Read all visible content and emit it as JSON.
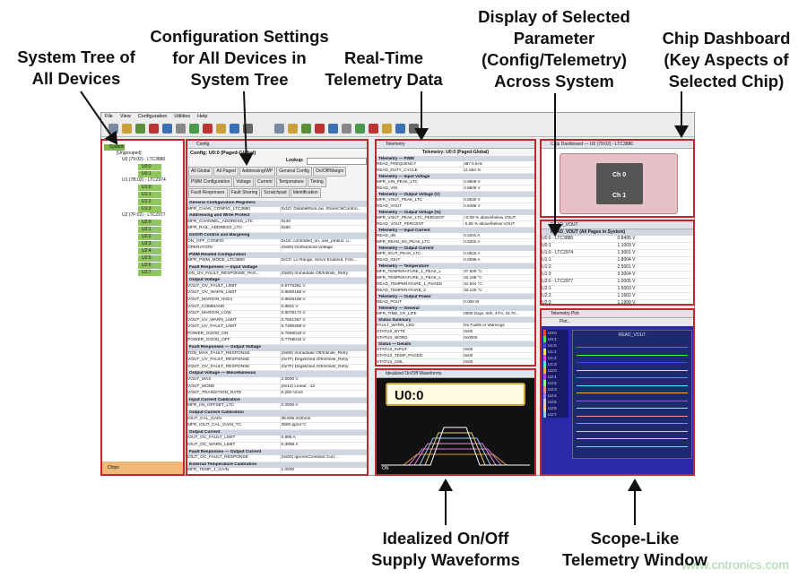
{
  "callouts": {
    "tree": [
      "System Tree of",
      "All Devices"
    ],
    "config": [
      "Configuration Settings",
      "for All Devices in",
      "System Tree"
    ],
    "telemetry": [
      "Real-Time",
      "Telemetry Data"
    ],
    "display": [
      "Display of Selected",
      "Parameter",
      "(Config/Telemetry)",
      "Across System"
    ],
    "dashboard": [
      "Chip Dashboard",
      "(Key Aspects of",
      "Selected Chip)"
    ],
    "waveforms": [
      "Idealized On/Off",
      "Supply Waveforms"
    ],
    "scope": [
      "Scope-Like",
      "Telemetry Window"
    ]
  },
  "watermark": "www.cntronics.com",
  "menu": [
    "File",
    "View",
    "Configuration",
    "Utilities",
    "Help"
  ],
  "tree": {
    "root": "System",
    "group": "[Ungrouped]",
    "chips": [
      {
        "name": "U0 (79:02) - LTC3880",
        "pages": [
          "U0:0",
          "U0:1"
        ]
      },
      {
        "name": "U1 (7B:02) - LTC2974",
        "pages": [
          "U1:0",
          "U1:1",
          "U1:2",
          "U1:3"
        ]
      },
      {
        "name": "U2 (7F:02) - LTC2977",
        "pages": [
          "U2:0",
          "U2:1",
          "U2:2",
          "U2:3",
          "U2:4",
          "U2:5",
          "U2:6",
          "U2:7"
        ]
      }
    ],
    "footer": "Chips"
  },
  "config": {
    "title": "Config",
    "heading": "Config: U0:0 (Paged-Global)",
    "lookup": "Lookup:",
    "tabs": [
      "All Global",
      "All Paged",
      "Addressing/WP",
      "General Config",
      "On/Off/Margin",
      "PWM Configuration",
      "Voltage",
      "Current",
      "Temperature",
      "Timing",
      "Fault Responses",
      "Fault Sharing",
      "Scratchpad",
      "Identification"
    ],
    "sections": [
      {
        "title": "General Configuration Registers",
        "rows": [
          [
            "MFR_CHAN_CONFIG_LTC3880",
            "0x1D: DisableRunLow, ShareClkControl..."
          ]
        ]
      },
      {
        "title": "Addressing and Write Protect",
        "rows": [
          [
            "MFR_CHANNEL_ADDRESS_LTC",
            "0x40"
          ],
          [
            "MFR_RAIL_ADDRESS_LTC",
            "0x80"
          ]
        ]
      },
      {
        "title": "On/Off Control and Margining",
        "rows": [
          [
            "ON_OFF_CONFIG",
            "0x1E: controlled_on, use_pmbus, u..."
          ],
          [
            "OPERATION",
            "(0x80) On/Nominal Voltage"
          ]
        ]
      },
      {
        "title": "PWM Related Configuration",
        "rows": [
          [
            "MFR_PWM_MODE_LTC3880",
            "0xC0: Lo Range, Servo Enabled, Forc..."
          ]
        ]
      },
      {
        "title": "Fault Responses — Input Voltage",
        "rows": [
          [
            "VIN_OV_FAULT_RESPONSE_PAG...",
            "(0x80) Immediate Off/Infinite_Retry"
          ]
        ]
      },
      {
        "title": "Output Voltage",
        "rows": [
          [
            "VOUT_OV_FAULT_LIMIT",
            "0.8775391 V"
          ],
          [
            "VOUT_OV_WARN_LIMIT",
            "0.8690186 V"
          ],
          [
            "VOUT_MARGIN_HIGH",
            "0.8825195 V"
          ],
          [
            "VOUT_COMMAND",
            "0.8501 V"
          ],
          [
            "VOUT_MARGIN_LOW",
            "0.8076172 V"
          ],
          [
            "VOUT_UV_WARN_LIMIT",
            "0.7651367 V"
          ],
          [
            "VOUT_UV_FAULT_LIMIT",
            "0.7480469 V"
          ],
          [
            "POWER_GOOD_ON",
            "0.7666016 V"
          ],
          [
            "POWER_GOOD_OFF",
            "0.7758016 V"
          ]
        ]
      },
      {
        "title": "Fault Responses — Output Voltage",
        "rows": [
          [
            "TON_MAX_FAULT_RESPONSE",
            "(0x80) Immediate Off/Infinite_Retry"
          ],
          [
            "VOUT_UV_FAULT_RESPONSE",
            "(0x7F) Deglitched Off/Infinite_Retry"
          ],
          [
            "VOUT_OV_FAULT_RESPONSE",
            "(0x7F) Deglitched Off/Infinite_Retry"
          ]
        ]
      },
      {
        "title": "Output Voltage — Miscellaneous",
        "rows": [
          [
            "VOUT_MAX",
            "2.0000 V"
          ],
          [
            "VOUT_MODE",
            "(0x14) Linear, -12"
          ],
          [
            "VOUT_TRANSITION_RATE",
            "0.250 V/ms"
          ]
        ]
      },
      {
        "title": "Input Current Calibration",
        "rows": [
          [
            "MFR_IIN_OFFSET_LTC",
            "0.0500 A"
          ]
        ]
      },
      {
        "title": "Output Current Calibration",
        "rows": [
          [
            "IOUT_CAL_GAIN",
            "38.605 mOhms"
          ],
          [
            "MFR_IOUT_CAL_GAIN_TC",
            "3900 ppm/°C"
          ]
        ]
      },
      {
        "title": "Output Current",
        "rows": [
          [
            "IOUT_OC_FAULT_LIMIT",
            "0.895 A"
          ],
          [
            "IOUT_OC_WARN_LIMIT",
            "0.3998 A"
          ]
        ]
      },
      {
        "title": "Fault Responses — Output Current",
        "rows": [
          [
            "IOUT_OC_FAULT_RESPONSE",
            "(0x00) Ignore/Constant Curr..."
          ]
        ]
      },
      {
        "title": "External Temperature Calibration",
        "rows": [
          [
            "MFR_TEMP_1_GAIN",
            "1.0000"
          ]
        ]
      }
    ]
  },
  "telemetry": {
    "title": "Telemetry",
    "heading": "Telemetry: U0:0 (Paged-Global)",
    "sections": [
      {
        "title": "Telemetry — PWM",
        "rows": [
          [
            "READ_FREQUENCY",
            "487.5 kHz"
          ],
          [
            "READ_DUTY_CYCLE",
            "11.584 %"
          ]
        ]
      },
      {
        "title": "Telemetry — Input Voltage",
        "rows": [
          [
            "MFR_VIN_PEAK_LTC",
            "4.9609 V"
          ],
          [
            "READ_VIN",
            "4.9609 V"
          ]
        ]
      },
      {
        "title": "Telemetry — Output Voltage (V)",
        "rows": [
          [
            "MFR_VOUT_PEAK_LTC",
            "0.8530 V"
          ],
          [
            "READ_VOUT",
            "0.8496 V"
          ]
        ]
      },
      {
        "title": "Telemetry — Output Voltage (%)",
        "rows": [
          [
            "MFR_VOUT_PEAK_LTC_PERCENT",
            "+0.09 % above/below VOUT"
          ],
          [
            "READ_VOUT_PERCENT",
            "-0.06 % above/below VOUT"
          ]
        ]
      },
      {
        "title": "Telemetry — Input Current",
        "rows": [
          [
            "READ_IIN",
            "0.0201 A"
          ],
          [
            "MFR_READ_IIN_PEAK_LTC",
            "0.0202 A"
          ]
        ]
      },
      {
        "title": "Telemetry — Output Current",
        "rows": [
          [
            "MFR_IOUT_PEAK_LTC",
            "0.0622 A"
          ],
          [
            "READ_IOUT",
            "0.0095 A"
          ]
        ]
      },
      {
        "title": "Telemetry — Temperature",
        "rows": [
          [
            "MFR_TEMPERATURE_1_PEAK_L",
            "37.500 °C"
          ],
          [
            "MFR_TEMPERATURE_2_PEAK_L",
            "32.188 °C"
          ],
          [
            "READ_TEMPERATURE_1_PAGED",
            "31.844 °C"
          ],
          [
            "READ_TEMPERATURE_2",
            "32.125 °C"
          ]
        ]
      },
      {
        "title": "Telemetry — Output Power",
        "rows": [
          [
            "READ_POUT",
            "0.008 W"
          ]
        ]
      },
      {
        "title": "Telemetry — General",
        "rows": [
          [
            "MFR_TIME_OF_LIFE",
            "0000 Days, 00h, 47m, 33.70..."
          ]
        ]
      },
      {
        "title": "Status Summary",
        "rows": [
          [
            "FAULT_WARN_LED",
            "No Faults or Warnings"
          ],
          [
            "STATUS_BYTE",
            "0x00"
          ],
          [
            "STATUS_WORD",
            "0x0000"
          ]
        ]
      },
      {
        "title": "Status — Details",
        "rows": [
          [
            "STATUS_INPUT",
            "0x00"
          ],
          [
            "STATUS_TEMP_PAGED",
            "0x00"
          ],
          [
            "STATUS_CML",
            "0x00"
          ],
          [
            "STATUS_VOUT",
            "0x00"
          ]
        ]
      }
    ]
  },
  "waveforms": {
    "title": "Idealized On/Off Waveforms",
    "rail": "U0:0",
    "state": "ON"
  },
  "dashboard": {
    "title": "Chip Dashboard — U0 (79:02) - LTC3880",
    "channels": [
      "Ch 0",
      "Ch 1"
    ]
  },
  "vout_table": {
    "title": "READ_VOUT",
    "heading": "READ_VOUT (All Pages in System)",
    "rows": [
      [
        "U0:0 - LTC3880",
        "0.8495 V"
      ],
      [
        "U0:1",
        "1.1003 V"
      ],
      [
        "U1:0 - LTC2974",
        "1.3001 V"
      ],
      [
        "U1:1",
        "1.8004 V"
      ],
      [
        "U1:2",
        "2.5001 V"
      ],
      [
        "U1:3",
        "3.3004 V"
      ],
      [
        "U2:0 - LTC2977",
        "1.0005 V"
      ],
      [
        "U2:1",
        "1.5003 V"
      ],
      [
        "U2:2",
        "1.1602 V"
      ],
      [
        "U2:3",
        "1.1999 V"
      ]
    ]
  },
  "plot": {
    "title": "Telemetry Plot",
    "menu": "Plot...",
    "heading": "READ_VOUT",
    "legend": [
      "U0:0",
      "U0:1",
      "U1:0",
      "U1:1",
      "U1:2",
      "U1:3",
      "U2:0",
      "U2:1",
      "U2:2",
      "U2:3",
      "U2:4",
      "U2:5",
      "U2:6",
      "U2:7"
    ]
  }
}
